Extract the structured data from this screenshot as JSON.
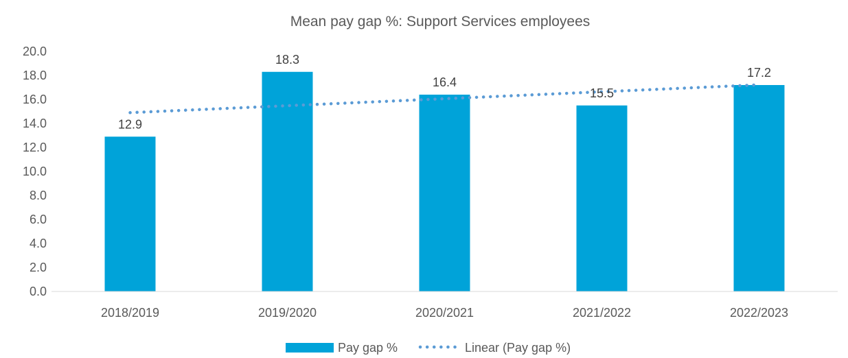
{
  "chart_data": {
    "type": "bar",
    "title": "Mean pay gap %: Support Services employees",
    "categories": [
      "2018/2019",
      "2019/2020",
      "2020/2021",
      "2021/2022",
      "2022/2023"
    ],
    "series": [
      {
        "name": "Pay gap %",
        "values": [
          12.9,
          18.3,
          16.4,
          15.5,
          17.2
        ],
        "data_labels": [
          "12.9",
          "18.3",
          "16.4",
          "15.5",
          "17.2"
        ],
        "color": "#00a3d9"
      }
    ],
    "trendline": {
      "name": "Linear (Pay gap %)",
      "type": "linear",
      "style": "dotted",
      "color": "#5b9bd5"
    },
    "ylim": [
      0,
      20
    ],
    "y_ticks": [
      "0.0",
      "2.0",
      "4.0",
      "6.0",
      "8.0",
      "10.0",
      "12.0",
      "14.0",
      "16.0",
      "18.0",
      "20.0"
    ],
    "xlabel": "",
    "ylabel": "",
    "grid": false,
    "legend_position": "bottom"
  }
}
